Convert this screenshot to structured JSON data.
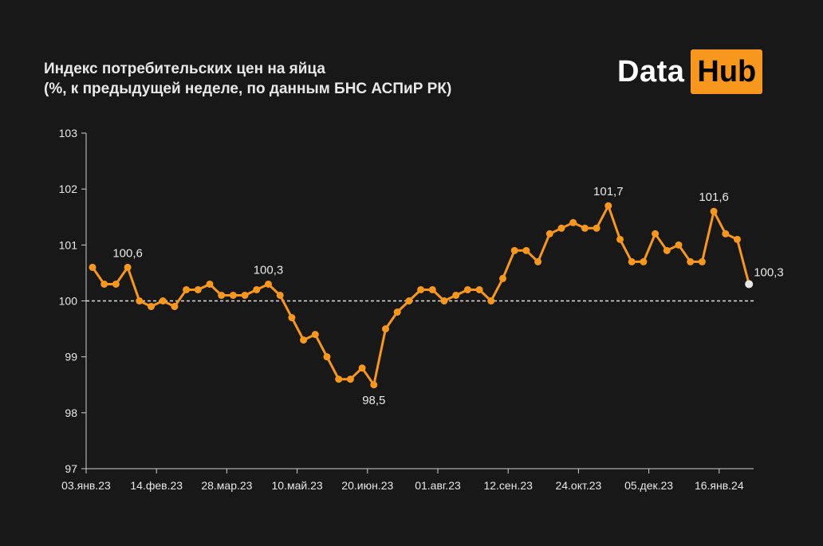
{
  "title": {
    "line1": "Индекс потребительских цен на яйца",
    "line2": "(%, к предыдущей неделе, по данным  БНС АСПиР РК)"
  },
  "logo": {
    "data": "Data",
    "hub": "Hub"
  },
  "colors": {
    "line": "#f7971d",
    "last_point": "#e6e6e6",
    "text": "#e8e8e8",
    "axis": "#d0d0d0"
  },
  "chart_data": {
    "type": "line",
    "title": "Индекс потребительских цен на яйца",
    "subtitle": "(%, к предыдущей неделе, по данным  БНС АСПиР РК)",
    "ylim": [
      97,
      103
    ],
    "yticks": [
      97,
      98,
      99,
      100,
      101,
      102,
      103
    ],
    "ytick_labels": [
      "97",
      "98",
      "99",
      "100",
      "101",
      "102",
      "103"
    ],
    "reference_line": 100,
    "xtick_labels": [
      "03.янв.23",
      "14.фев.23",
      "28.мар.23",
      "10.май.23",
      "20.июн.23",
      "01.авг.23",
      "12.сен.23",
      "24.окт.23",
      "05.дек.23",
      "16.янв.24"
    ],
    "xtick_index": [
      0,
      6,
      12,
      18,
      24,
      30,
      36,
      42,
      48,
      54
    ],
    "series": [
      {
        "values": [
          100.6,
          100.3,
          100.3,
          100.6,
          100.0,
          99.9,
          100.0,
          99.9,
          100.2,
          100.2,
          100.3,
          100.1,
          100.1,
          100.1,
          100.2,
          100.3,
          100.1,
          99.7,
          99.3,
          99.4,
          99.0,
          98.6,
          98.6,
          98.8,
          98.5,
          99.5,
          99.8,
          100.0,
          100.2,
          100.2,
          100.0,
          100.1,
          100.2,
          100.2,
          100.0,
          100.4,
          100.9,
          100.9,
          100.7,
          101.2,
          101.3,
          101.4,
          101.3,
          101.3,
          101.7,
          101.1,
          100.7,
          100.7,
          101.2,
          100.9,
          101.0,
          100.7,
          100.7,
          101.6,
          101.2,
          101.1,
          100.3
        ]
      }
    ],
    "annotations": [
      {
        "index": 3,
        "label": "100,6"
      },
      {
        "index": 15,
        "label": "100,3"
      },
      {
        "index": 24,
        "label": "98,5"
      },
      {
        "index": 44,
        "label": "101,7"
      },
      {
        "index": 53,
        "label": "101,6"
      },
      {
        "index": 56,
        "label": "100,3"
      }
    ]
  }
}
